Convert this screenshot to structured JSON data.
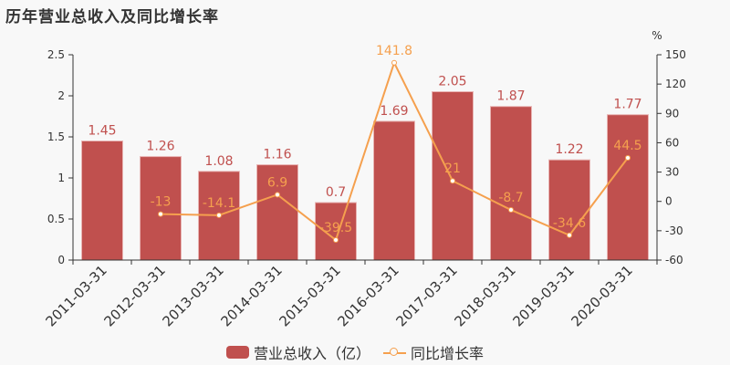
{
  "title": "历年营业总收入及同比增长率",
  "chart_data": {
    "type": "bar+line",
    "title": "历年营业总收入及同比增长率",
    "categories": [
      "2011-03-31",
      "2012-03-31",
      "2013-03-31",
      "2014-03-31",
      "2015-03-31",
      "2016-03-31",
      "2017-03-31",
      "2018-03-31",
      "2019-03-31",
      "2020-03-31"
    ],
    "series": [
      {
        "name": "营业总收入（亿）",
        "type": "bar",
        "axis": "left",
        "color": "#c0504e",
        "values": [
          1.45,
          1.26,
          1.08,
          1.16,
          0.7,
          1.69,
          2.05,
          1.87,
          1.22,
          1.77
        ]
      },
      {
        "name": "同比增长率",
        "type": "line",
        "axis": "right",
        "color": "#f5a04e",
        "values": [
          null,
          -13,
          -14.1,
          6.9,
          -39.5,
          141.8,
          21,
          -8.7,
          -34.6,
          44.5
        ]
      }
    ],
    "y_left": {
      "ticks": [
        "0",
        "0.5",
        "1",
        "1.5",
        "2",
        "2.5"
      ],
      "ylim": [
        0,
        2.5
      ]
    },
    "y_right": {
      "label": "%",
      "ticks": [
        "-60",
        "-30",
        "0",
        "30",
        "60",
        "90",
        "120",
        "150"
      ],
      "ylim": [
        -60,
        150
      ]
    },
    "grid": false,
    "legend_position": "bottom"
  },
  "legend": [
    {
      "label": "营业总收入（亿）",
      "icon": "bar-swatch"
    },
    {
      "label": "同比增长率",
      "icon": "line-circle"
    }
  ],
  "colors": {
    "bar": "#c0504e",
    "line": "#f5a04e",
    "bar_label": "#c0504e",
    "line_label": "#f5a04e",
    "axis": "#333333"
  }
}
